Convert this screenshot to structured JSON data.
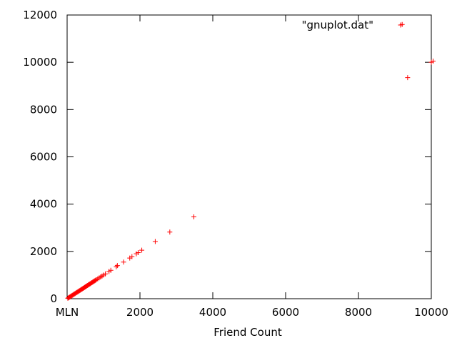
{
  "chart_data": {
    "type": "scatter",
    "title": "",
    "xlabel": "Friend Count",
    "ylabel": "",
    "xlim": [
      0,
      10000
    ],
    "ylim": [
      0,
      12000
    ],
    "grid": false,
    "legend_position": "top-right",
    "x_ticks": [
      0,
      2000,
      4000,
      6000,
      8000,
      10000
    ],
    "x_tick_labels": [
      "MLN",
      "2000",
      "4000",
      "6000",
      "8000",
      "10000"
    ],
    "y_ticks": [
      0,
      2000,
      4000,
      6000,
      8000,
      10000,
      12000
    ],
    "y_tick_labels": [
      "0",
      "2000",
      "4000",
      "6000",
      "8000",
      "10000",
      "12000"
    ],
    "series": [
      {
        "name": "\"gnuplot.dat\"",
        "color": "#ff0000",
        "marker": "plus",
        "points": [
          [
            20,
            20
          ],
          [
            40,
            40
          ],
          [
            60,
            60
          ],
          [
            80,
            80
          ],
          [
            100,
            100
          ],
          [
            120,
            120
          ],
          [
            140,
            140
          ],
          [
            160,
            160
          ],
          [
            180,
            180
          ],
          [
            200,
            200
          ],
          [
            220,
            220
          ],
          [
            240,
            240
          ],
          [
            260,
            260
          ],
          [
            280,
            280
          ],
          [
            300,
            300
          ],
          [
            320,
            320
          ],
          [
            340,
            340
          ],
          [
            360,
            360
          ],
          [
            380,
            380
          ],
          [
            400,
            400
          ],
          [
            420,
            420
          ],
          [
            440,
            440
          ],
          [
            460,
            460
          ],
          [
            480,
            480
          ],
          [
            500,
            500
          ],
          [
            520,
            520
          ],
          [
            540,
            540
          ],
          [
            560,
            560
          ],
          [
            580,
            580
          ],
          [
            600,
            600
          ],
          [
            620,
            620
          ],
          [
            640,
            640
          ],
          [
            660,
            660
          ],
          [
            680,
            680
          ],
          [
            700,
            700
          ],
          [
            720,
            720
          ],
          [
            740,
            740
          ],
          [
            760,
            760
          ],
          [
            780,
            780
          ],
          [
            800,
            800
          ],
          [
            840,
            840
          ],
          [
            880,
            880
          ],
          [
            920,
            920
          ],
          [
            960,
            960
          ],
          [
            1000,
            1000
          ],
          [
            1050,
            1050
          ],
          [
            1150,
            1150
          ],
          [
            1200,
            1200
          ],
          [
            1350,
            1350
          ],
          [
            1380,
            1400
          ],
          [
            1550,
            1550
          ],
          [
            1720,
            1720
          ],
          [
            1780,
            1780
          ],
          [
            1900,
            1900
          ],
          [
            1950,
            1950
          ],
          [
            2050,
            2050
          ],
          [
            2420,
            2420
          ],
          [
            2820,
            2820
          ],
          [
            3480,
            3460
          ],
          [
            9200,
            11600
          ],
          [
            9350,
            9350
          ],
          [
            10000,
            10000
          ],
          [
            10050,
            10050
          ]
        ]
      }
    ]
  }
}
